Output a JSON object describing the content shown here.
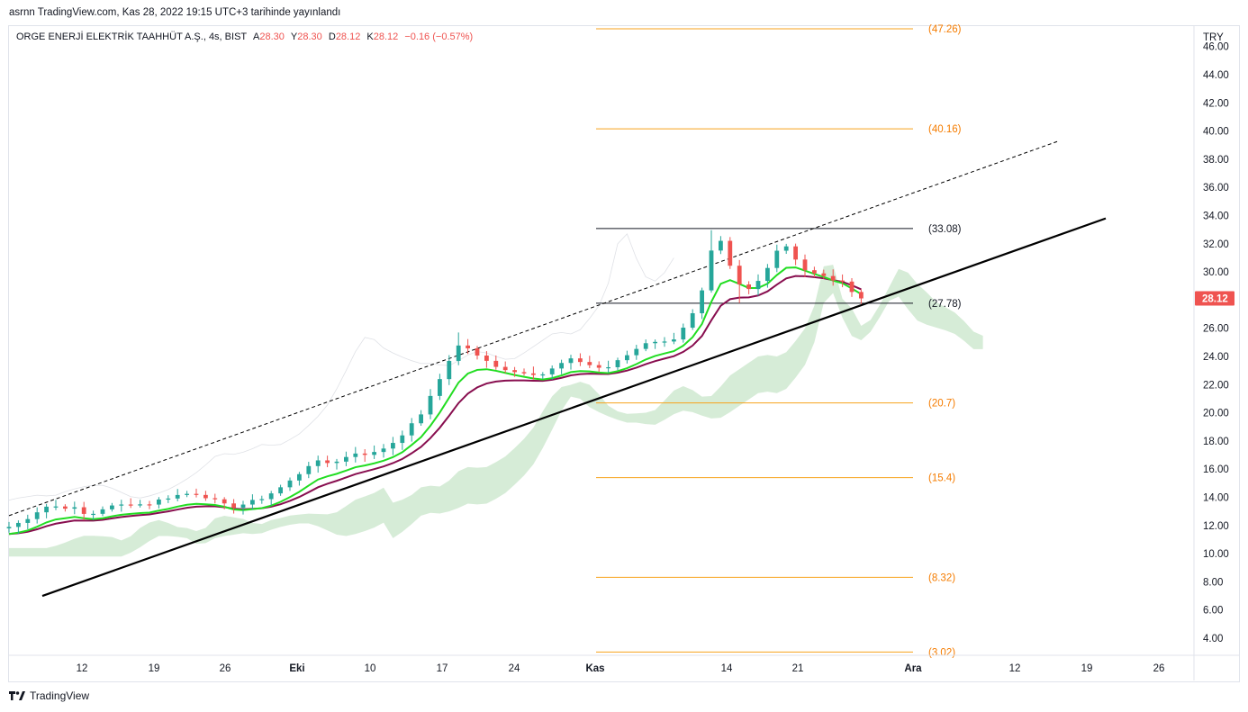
{
  "header": {
    "published_line": "asrnn TradingView.com, Kas 28, 2022 19:15 UTC+3 tarihinde yayınlandı"
  },
  "legend": {
    "symbol_text": "ORGE ENERJİ ELEKTRİK TAAHHÜT A.Ş., 4s, BIST",
    "open_label": "A",
    "open_value": "28.30",
    "high_label": "Y",
    "high_value": "28.30",
    "low_label": "D",
    "low_value": "28.12",
    "close_label": "K",
    "close_value": "28.12",
    "change_value": "−0.16 (−0.57%)"
  },
  "footer": {
    "brand": "TradingView"
  },
  "colors": {
    "up": "#26a69a",
    "down": "#ef5350",
    "fib": "#f7a21b",
    "fib_text": "#f57c00",
    "ema_fast": "#22dd22",
    "ema_slow": "#880e4f",
    "cloud": "#c8e6c9",
    "trend": "#000000",
    "price_tag": "#ef5350"
  },
  "chart_data": {
    "type": "candlestick",
    "currency": "TRY",
    "last_price": "28.12",
    "y_ticks": [
      "46.00",
      "44.00",
      "42.00",
      "40.00",
      "38.00",
      "36.00",
      "34.00",
      "32.00",
      "30.00",
      "28.00",
      "26.00",
      "24.00",
      "22.00",
      "20.00",
      "18.00",
      "16.00",
      "14.00",
      "12.00",
      "10.00",
      "8.00",
      "6.00",
      "4.00"
    ],
    "y_tick_values": [
      46,
      44,
      42,
      40,
      38,
      36,
      34,
      32,
      30,
      28,
      26,
      24,
      22,
      20,
      18,
      16,
      14,
      12,
      10,
      8,
      6,
      4
    ],
    "x_ticks": [
      {
        "label": "12",
        "bold": false
      },
      {
        "label": "19",
        "bold": false
      },
      {
        "label": "26",
        "bold": false
      },
      {
        "label": "Eki",
        "bold": true
      },
      {
        "label": "10",
        "bold": false
      },
      {
        "label": "17",
        "bold": false
      },
      {
        "label": "24",
        "bold": false
      },
      {
        "label": "Kas",
        "bold": true
      },
      {
        "label": "14",
        "bold": false
      },
      {
        "label": "21",
        "bold": false
      },
      {
        "label": "Ara",
        "bold": true
      },
      {
        "label": "12",
        "bold": false
      },
      {
        "label": "19",
        "bold": false
      },
      {
        "label": "26",
        "bold": false
      }
    ],
    "fib_levels": [
      {
        "label": "(47.26)",
        "value": 47.26,
        "color": "orange"
      },
      {
        "label": "(40.16)",
        "value": 40.16,
        "color": "orange"
      },
      {
        "label": "(33.08)",
        "value": 33.08,
        "color": "black"
      },
      {
        "label": "(27.78)",
        "value": 27.78,
        "color": "black"
      },
      {
        "label": "(20.7)",
        "value": 20.7,
        "color": "orange"
      },
      {
        "label": "(15.4)",
        "value": 15.4,
        "color": "orange"
      },
      {
        "label": "(8.32)",
        "value": 8.32,
        "color": "orange"
      },
      {
        "label": "(3.02)",
        "value": 3.02,
        "color": "orange"
      }
    ],
    "price_path": [
      [
        0,
        11.9
      ],
      [
        1.5,
        12.3
      ],
      [
        2.5,
        12.8
      ],
      [
        3.5,
        13.2
      ],
      [
        4.5,
        13.5
      ],
      [
        5.5,
        13.2
      ],
      [
        6.5,
        13.4
      ],
      [
        7.5,
        13.0
      ],
      [
        8.5,
        12.6
      ],
      [
        9.5,
        13.1
      ],
      [
        10.5,
        13.3
      ],
      [
        11.5,
        13.4
      ],
      [
        12.5,
        13.5
      ],
      [
        13.5,
        13.6
      ],
      [
        14.5,
        13.4
      ],
      [
        15.5,
        13.7
      ],
      [
        16.5,
        13.9
      ],
      [
        17.5,
        14.1
      ],
      [
        18.5,
        14.2
      ],
      [
        19.5,
        14.3
      ],
      [
        20.5,
        14.2
      ],
      [
        21.5,
        13.9
      ],
      [
        22.5,
        13.6
      ],
      [
        23.5,
        13.3
      ],
      [
        24.5,
        13.4
      ],
      [
        25.5,
        13.6
      ],
      [
        26.5,
        13.8
      ],
      [
        27.5,
        14.1
      ],
      [
        28.5,
        14.5
      ],
      [
        29.5,
        14.9
      ],
      [
        30.5,
        15.4
      ],
      [
        31.5,
        16.0
      ],
      [
        32.5,
        16.6
      ],
      [
        33.5,
        16.4
      ],
      [
        34.5,
        16.5
      ],
      [
        35.5,
        16.7
      ],
      [
        36.5,
        17.0
      ],
      [
        37.5,
        17.3
      ],
      [
        38.5,
        16.9
      ],
      [
        39.5,
        17.4
      ],
      [
        40.5,
        17.6
      ],
      [
        41.5,
        18.2
      ],
      [
        42.5,
        18.8
      ],
      [
        43.5,
        19.5
      ],
      [
        44.5,
        20.4
      ],
      [
        45.5,
        21.8
      ],
      [
        46.5,
        23.0
      ],
      [
        47.5,
        24.5
      ],
      [
        48.5,
        25.0
      ],
      [
        49.5,
        24.2
      ],
      [
        50.5,
        23.8
      ],
      [
        51.5,
        23.5
      ],
      [
        52.5,
        23.2
      ],
      [
        53.5,
        23.0
      ],
      [
        54.5,
        22.8
      ],
      [
        55.5,
        23.0
      ],
      [
        56.5,
        22.6
      ],
      [
        57.5,
        22.9
      ],
      [
        58.5,
        23.3
      ],
      [
        59.5,
        23.7
      ],
      [
        60.5,
        23.8
      ],
      [
        61.5,
        23.5
      ],
      [
        62.5,
        23.3
      ],
      [
        63.5,
        23.1
      ],
      [
        64.5,
        23.4
      ],
      [
        65.5,
        23.9
      ],
      [
        66.5,
        24.3
      ],
      [
        67.5,
        24.8
      ],
      [
        68.5,
        25.2
      ],
      [
        69.5,
        25.0
      ],
      [
        70.5,
        25.0
      ],
      [
        71.5,
        25.6
      ],
      [
        72.5,
        26.6
      ],
      [
        73.5,
        27.4
      ],
      [
        74.5,
        29.8
      ],
      [
        75.5,
        33.0
      ],
      [
        76.5,
        31.2
      ],
      [
        77.5,
        29.5
      ],
      [
        78.5,
        28.6
      ],
      [
        79.5,
        28.9
      ],
      [
        80.5,
        29.8
      ],
      [
        81.5,
        31.0
      ],
      [
        82.5,
        32.1
      ],
      [
        83.5,
        31.6
      ],
      [
        84.5,
        30.3
      ],
      [
        85.5,
        30.0
      ],
      [
        86.5,
        29.7
      ],
      [
        87.5,
        29.6
      ],
      [
        88.5,
        29.3
      ],
      [
        89.5,
        29.1
      ],
      [
        90.5,
        28.3
      ],
      [
        91.0,
        28.12
      ]
    ]
  }
}
